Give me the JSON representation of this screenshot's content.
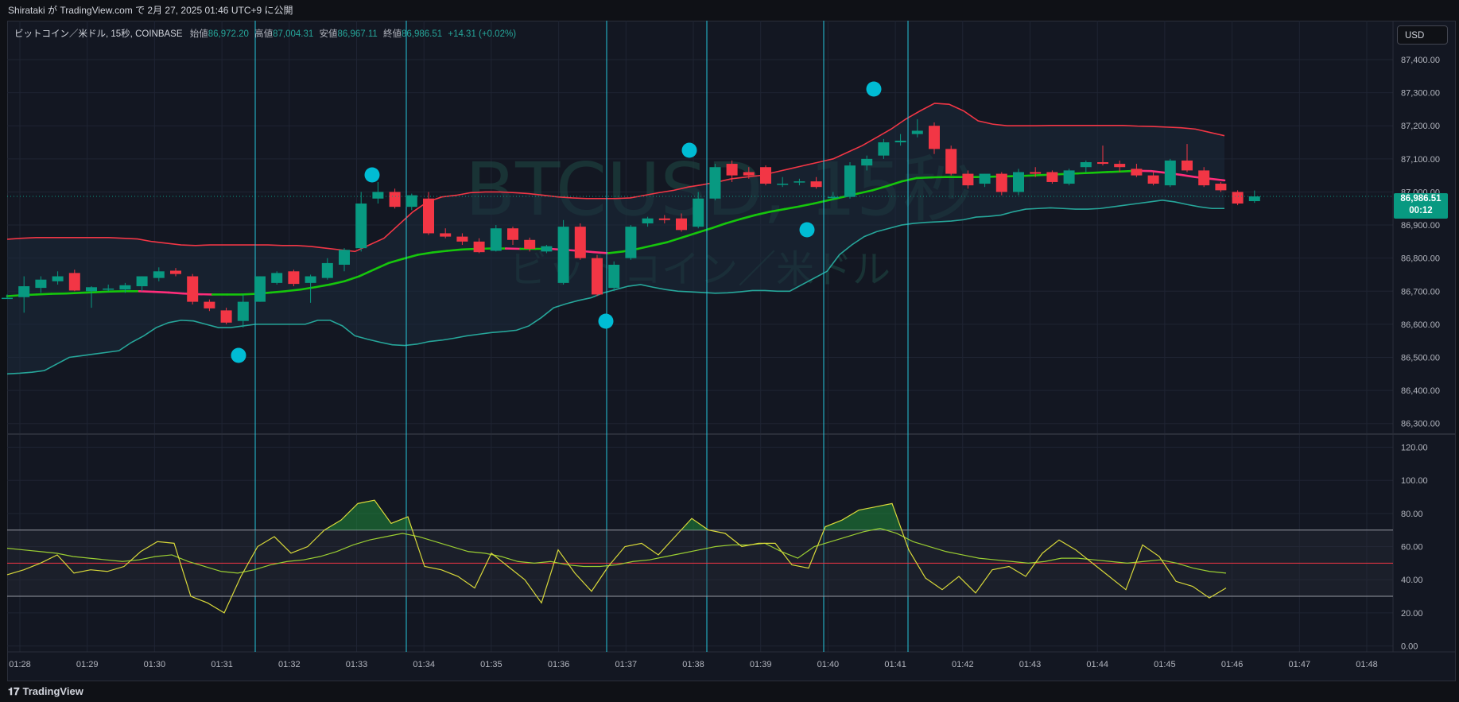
{
  "header": {
    "publish_text": "Shirataki が TradingView.com で 2月 27, 2025 01:46 UTC+9 に公開"
  },
  "legend": {
    "symbol": "ビットコイン／米ドル, 15秒, COINBASE",
    "open_label": "始値",
    "open_value": "86,972.20",
    "high_label": "高値",
    "high_value": "87,004.31",
    "low_label": "安値",
    "low_value": "86,967.11",
    "close_label": "終値",
    "close_value": "86,986.51",
    "change": "+14.31 (+0.02%)"
  },
  "currency_button": "USD",
  "price_tag": {
    "price": "86,986.51",
    "countdown": "00:12"
  },
  "watermark": {
    "ticker": "BTCUSD, 15秒",
    "name": "ビットコイン／米ドル"
  },
  "footer": {
    "logo_mark": "𝟏𝟕",
    "logo_text": "TradingView"
  },
  "colors": {
    "up": "#089981",
    "down": "#f23645",
    "upper_band": "#f23645",
    "lower_band": "#26a69a",
    "basis_up": "#16c60c",
    "basis_down": "#ff2d7a",
    "marker": "#00bcd4",
    "rsi": "#d9d93a",
    "rsi_ma": "#9acd32",
    "vline": "#26c6da"
  },
  "chart_data": [
    {
      "type": "candlestick",
      "title": "BTCUSD, 15秒",
      "ylim": [
        86250,
        87480
      ],
      "y_ticks": [
        "87,400.00",
        "87,300.00",
        "87,200.00",
        "87,100.00",
        "87,000.00",
        "86,900.00",
        "86,800.00",
        "86,700.00",
        "86,600.00",
        "86,500.00",
        "86,400.00",
        "86,300.00"
      ],
      "x_ticks": [
        "01:28",
        "01:29",
        "01:30",
        "01:31",
        "01:32",
        "01:33",
        "01:34",
        "01:35",
        "01:36",
        "01:37",
        "01:38",
        "01:39",
        "01:40",
        "01:41",
        "01:42",
        "01:43",
        "01:44",
        "01:45",
        "01:46",
        "01:47",
        "01:48"
      ],
      "candles": [
        {
          "o": 86680,
          "h": 86690,
          "l": 86680,
          "c": 86680
        },
        {
          "o": 86682,
          "h": 86745,
          "l": 86635,
          "c": 86715
        },
        {
          "o": 86710,
          "h": 86745,
          "l": 86695,
          "c": 86735
        },
        {
          "o": 86730,
          "h": 86760,
          "l": 86720,
          "c": 86745
        },
        {
          "o": 86755,
          "h": 86765,
          "l": 86700,
          "c": 86702
        },
        {
          "o": 86700,
          "h": 86715,
          "l": 86650,
          "c": 86712
        },
        {
          "o": 86708,
          "h": 86720,
          "l": 86700,
          "c": 86708
        },
        {
          "o": 86705,
          "h": 86725,
          "l": 86695,
          "c": 86718
        },
        {
          "o": 86715,
          "h": 86745,
          "l": 86700,
          "c": 86745
        },
        {
          "o": 86740,
          "h": 86772,
          "l": 86730,
          "c": 86760
        },
        {
          "o": 86762,
          "h": 86770,
          "l": 86745,
          "c": 86752
        },
        {
          "o": 86745,
          "h": 86752,
          "l": 86660,
          "c": 86668
        },
        {
          "o": 86668,
          "h": 86675,
          "l": 86640,
          "c": 86648
        },
        {
          "o": 86642,
          "h": 86650,
          "l": 86600,
          "c": 86605
        },
        {
          "o": 86610,
          "h": 86690,
          "l": 86590,
          "c": 86668
        },
        {
          "o": 86668,
          "h": 86745,
          "l": 86668,
          "c": 86745
        },
        {
          "o": 86725,
          "h": 86760,
          "l": 86720,
          "c": 86755
        },
        {
          "o": 86760,
          "h": 86765,
          "l": 86715,
          "c": 86722
        },
        {
          "o": 86725,
          "h": 86750,
          "l": 86665,
          "c": 86745
        },
        {
          "o": 86740,
          "h": 86800,
          "l": 86735,
          "c": 86785
        },
        {
          "o": 86780,
          "h": 86830,
          "l": 86760,
          "c": 86825
        },
        {
          "o": 86830,
          "h": 87000,
          "l": 86820,
          "c": 86965
        },
        {
          "o": 86980,
          "h": 87030,
          "l": 86965,
          "c": 87000
        },
        {
          "o": 87000,
          "h": 87010,
          "l": 86950,
          "c": 86955
        },
        {
          "o": 86955,
          "h": 86995,
          "l": 86945,
          "c": 86990
        },
        {
          "o": 86980,
          "h": 87000,
          "l": 86870,
          "c": 86875
        },
        {
          "o": 86875,
          "h": 86890,
          "l": 86860,
          "c": 86865
        },
        {
          "o": 86865,
          "h": 86875,
          "l": 86840,
          "c": 86850
        },
        {
          "o": 86850,
          "h": 86860,
          "l": 86815,
          "c": 86818
        },
        {
          "o": 86822,
          "h": 86900,
          "l": 86820,
          "c": 86890
        },
        {
          "o": 86890,
          "h": 86895,
          "l": 86840,
          "c": 86855
        },
        {
          "o": 86855,
          "h": 86862,
          "l": 86820,
          "c": 86828
        },
        {
          "o": 86820,
          "h": 86840,
          "l": 86815,
          "c": 86836
        },
        {
          "o": 86725,
          "h": 86915,
          "l": 86720,
          "c": 86895
        },
        {
          "o": 86895,
          "h": 86905,
          "l": 86795,
          "c": 86800
        },
        {
          "o": 86800,
          "h": 86810,
          "l": 86685,
          "c": 86690
        },
        {
          "o": 86710,
          "h": 86790,
          "l": 86700,
          "c": 86780
        },
        {
          "o": 86800,
          "h": 86900,
          "l": 86795,
          "c": 86895
        },
        {
          "o": 86905,
          "h": 86925,
          "l": 86895,
          "c": 86920
        },
        {
          "o": 86920,
          "h": 86930,
          "l": 86905,
          "c": 86915
        },
        {
          "o": 86920,
          "h": 86935,
          "l": 86880,
          "c": 86885
        },
        {
          "o": 86895,
          "h": 87000,
          "l": 86890,
          "c": 86980
        },
        {
          "o": 86980,
          "h": 87085,
          "l": 86975,
          "c": 87075
        },
        {
          "o": 87085,
          "h": 87095,
          "l": 87030,
          "c": 87050
        },
        {
          "o": 87060,
          "h": 87075,
          "l": 87040,
          "c": 87050
        },
        {
          "o": 87075,
          "h": 87080,
          "l": 87020,
          "c": 87025
        },
        {
          "o": 87025,
          "h": 87045,
          "l": 87015,
          "c": 87025
        },
        {
          "o": 87030,
          "h": 87040,
          "l": 87020,
          "c": 87032
        },
        {
          "o": 87032,
          "h": 87045,
          "l": 87010,
          "c": 87015
        },
        {
          "o": 86985,
          "h": 87000,
          "l": 86975,
          "c": 86985
        },
        {
          "o": 86985,
          "h": 87090,
          "l": 86980,
          "c": 87080
        },
        {
          "o": 87080,
          "h": 87110,
          "l": 87065,
          "c": 87100
        },
        {
          "o": 87110,
          "h": 87160,
          "l": 87100,
          "c": 87150
        },
        {
          "o": 87150,
          "h": 87175,
          "l": 87140,
          "c": 87155
        },
        {
          "o": 87175,
          "h": 87220,
          "l": 87165,
          "c": 87185
        },
        {
          "o": 87200,
          "h": 87210,
          "l": 87115,
          "c": 87130
        },
        {
          "o": 87130,
          "h": 87140,
          "l": 87050,
          "c": 87055
        },
        {
          "o": 87055,
          "h": 87065,
          "l": 87010,
          "c": 87020
        },
        {
          "o": 87025,
          "h": 87055,
          "l": 87015,
          "c": 87055
        },
        {
          "o": 87055,
          "h": 87060,
          "l": 86990,
          "c": 87000
        },
        {
          "o": 87000,
          "h": 87070,
          "l": 86990,
          "c": 87060
        },
        {
          "o": 87060,
          "h": 87075,
          "l": 87045,
          "c": 87055
        },
        {
          "o": 87060,
          "h": 87065,
          "l": 87025,
          "c": 87030
        },
        {
          "o": 87025,
          "h": 87070,
          "l": 87020,
          "c": 87065
        },
        {
          "o": 87075,
          "h": 87095,
          "l": 87060,
          "c": 87090
        },
        {
          "o": 87090,
          "h": 87140,
          "l": 87080,
          "c": 87085
        },
        {
          "o": 87085,
          "h": 87095,
          "l": 87060,
          "c": 87075
        },
        {
          "o": 87070,
          "h": 87085,
          "l": 87045,
          "c": 87050
        },
        {
          "o": 87050,
          "h": 87060,
          "l": 87020,
          "c": 87025
        },
        {
          "o": 87020,
          "h": 87100,
          "l": 87015,
          "c": 87095
        },
        {
          "o": 87095,
          "h": 87145,
          "l": 87060,
          "c": 87065
        },
        {
          "o": 87065,
          "h": 87075,
          "l": 87015,
          "c": 87020
        },
        {
          "o": 87025,
          "h": 87030,
          "l": 87000,
          "c": 87005
        },
        {
          "o": 87000,
          "h": 87005,
          "l": 86960,
          "c": 86965
        },
        {
          "o": 86972.2,
          "h": 87004.31,
          "l": 86967.11,
          "c": 86986.51
        }
      ],
      "bollinger_upper": [
        86857,
        86860,
        86862,
        86862,
        86862,
        86862,
        86862,
        86862,
        86860,
        86858,
        86850,
        86845,
        86840,
        86838,
        86840,
        86840,
        86840,
        86840,
        86840,
        86838,
        86838,
        86835,
        86830,
        86825,
        86820,
        86840,
        86860,
        86900,
        86940,
        86970,
        86985,
        86990,
        86998,
        87000,
        87000,
        86998,
        86995,
        86990,
        86985,
        86982,
        86980,
        86980,
        86980,
        86982,
        86990,
        86998,
        87005,
        87015,
        87022,
        87030,
        87040,
        87045,
        87050,
        87060,
        87070,
        87080,
        87090,
        87100,
        87120,
        87140,
        87165,
        87190,
        87220,
        87245,
        87268,
        87265,
        87245,
        87215,
        87205,
        87200,
        87200,
        87200,
        87201,
        87201,
        87201,
        87201,
        87201,
        87201,
        87199,
        87198,
        87196,
        87194,
        87190,
        87180,
        87170
      ],
      "bollinger_basis": [
        86685,
        86688,
        86690,
        86692,
        86693,
        86695,
        86697,
        86699,
        86700,
        86700,
        86698,
        86696,
        86693,
        86691,
        86690,
        86690,
        86690,
        86692,
        86696,
        86700,
        86705,
        86712,
        86720,
        86730,
        86745,
        86765,
        86785,
        86798,
        86810,
        86817,
        86822,
        86826,
        86828,
        86829,
        86829,
        86828,
        86828,
        86828,
        86825,
        86822,
        86818,
        86815,
        86820,
        86828,
        86838,
        86848,
        86862,
        86876,
        86890,
        86905,
        86918,
        86930,
        86940,
        86948,
        86956,
        86965,
        86975,
        86985,
        86995,
        87005,
        87018,
        87032,
        87042,
        87044,
        87045,
        87045,
        87045,
        87046,
        87047,
        87048,
        87050,
        87052,
        87054,
        87056,
        87058,
        87060,
        87062,
        87064,
        87063,
        87058,
        87052,
        87045,
        87040,
        87035
      ],
      "bollinger_lower": [
        86450,
        86452,
        86455,
        86460,
        86480,
        86500,
        86505,
        86510,
        86515,
        86520,
        86545,
        86565,
        86590,
        86605,
        86612,
        86610,
        86600,
        86590,
        86590,
        86595,
        86600,
        86600,
        86600,
        86600,
        86600,
        86612,
        86612,
        86595,
        86565,
        86555,
        86546,
        86538,
        86536,
        86540,
        86548,
        86552,
        86558,
        86565,
        86570,
        86575,
        86578,
        86582,
        86595,
        86620,
        86650,
        86662,
        86672,
        86680,
        86695,
        86705,
        86715,
        86720,
        86712,
        86705,
        86700,
        86698,
        86696,
        86694,
        86695,
        86698,
        86702,
        86702,
        86700,
        86700,
        86720,
        86740,
        86760,
        86810,
        86840,
        86865,
        86880,
        86890,
        86900,
        86905,
        86908,
        86910,
        86912,
        86916,
        86924,
        86926,
        86930,
        86940,
        86948,
        86950,
        86952,
        86950,
        86948,
        86948,
        86950,
        86955,
        86960,
        86965,
        86970,
        86975,
        86970,
        86962,
        86955,
        86950,
        86950
      ]
    },
    {
      "type": "line",
      "title": "RSI",
      "ylim": [
        -5,
        125
      ],
      "y_ticks": [
        "120.00",
        "100.00",
        "80.00",
        "60.00",
        "40.00",
        "20.00",
        "0.00"
      ],
      "levels": [
        70,
        50,
        30
      ],
      "series": [
        {
          "values": [
            43,
            46,
            50,
            55,
            44,
            46,
            45,
            48,
            57,
            63,
            62,
            30,
            26,
            20,
            42,
            60,
            66,
            56,
            60,
            70,
            76,
            86,
            88,
            74,
            78,
            48,
            46,
            42,
            35,
            56,
            48,
            40,
            26,
            58,
            44,
            33,
            48,
            60,
            62,
            55,
            66,
            77,
            70,
            68,
            60,
            62,
            62,
            49,
            47,
            72,
            76,
            82,
            84,
            86,
            58,
            41,
            34,
            42,
            32,
            46,
            48,
            42,
            56,
            64,
            58,
            50,
            42,
            34,
            61,
            54,
            39,
            36,
            29,
            35
          ]
        },
        {
          "values": [
            59,
            58,
            57,
            56,
            54,
            53,
            52,
            51,
            52,
            54,
            55,
            51,
            48,
            45,
            44,
            46,
            49,
            51,
            52,
            54,
            57,
            61,
            64,
            66,
            68,
            66,
            63,
            60,
            57,
            56,
            54,
            51,
            50,
            51,
            49,
            48,
            48,
            49,
            51,
            52,
            54,
            56,
            58,
            60,
            61,
            61,
            62,
            57,
            53,
            60,
            63,
            66,
            69,
            71,
            68,
            63,
            60,
            57,
            55,
            53,
            52,
            51,
            50,
            51,
            53,
            53,
            52,
            51,
            50,
            51,
            52,
            50,
            47,
            45,
            44
          ]
        }
      ]
    }
  ]
}
